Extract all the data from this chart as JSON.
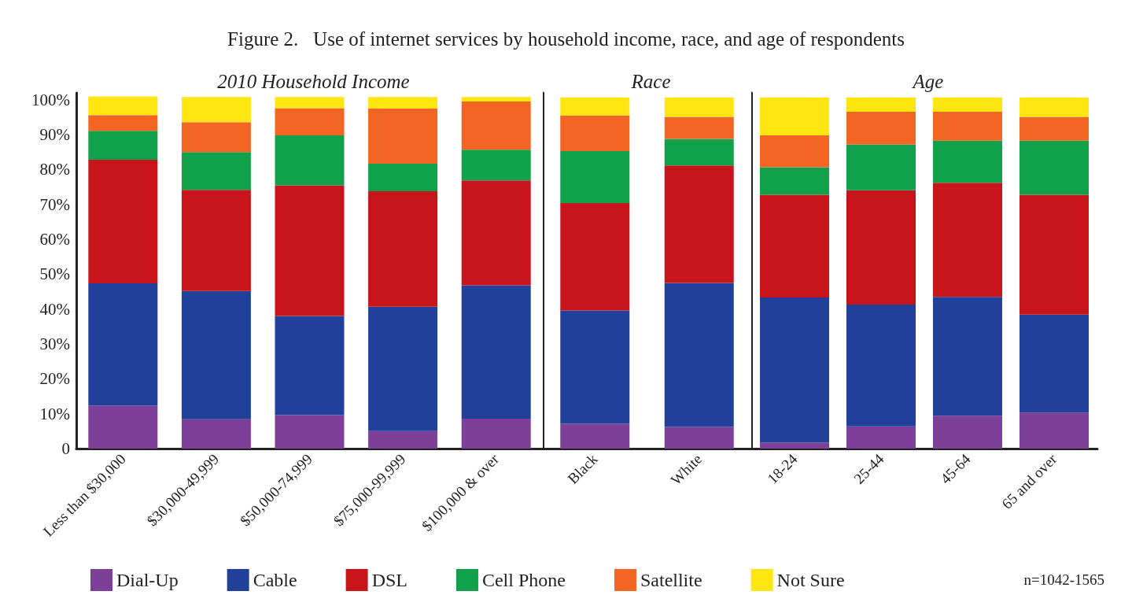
{
  "chart_data": [
    {
      "type": "bar",
      "title": "Figure 2.   Use of internet services by household income, race, and age of respondents",
      "subtitle": "2010 Household Income",
      "stacked": true,
      "legend": "bottom",
      "annotations": [
        "n=1042-1565"
      ],
      "categories": [
        "Less than $30,000",
        "$30,000-49,999",
        "$50,000-74,999",
        "$75,000-99,999",
        "$100,000 & over"
      ],
      "ylim": [
        0,
        102
      ],
      "yticks": [
        {
          "value": 0,
          "label": "0"
        },
        {
          "value": 10,
          "label": "10%"
        },
        {
          "value": 20,
          "label": "20%"
        },
        {
          "value": 30,
          "label": "30%"
        },
        {
          "value": 40,
          "label": "40%"
        },
        {
          "value": 50,
          "label": "50%"
        },
        {
          "value": 60,
          "label": "60%"
        },
        {
          "value": 70,
          "label": "70%"
        },
        {
          "value": 80,
          "label": "80%"
        },
        {
          "value": 90,
          "label": "90%"
        },
        {
          "value": 100,
          "label": "100%"
        }
      ],
      "series": [
        {
          "name": "Dial-Up",
          "color": "#7e3f98",
          "values": [
            12.3,
            8.4,
            9.6,
            5.0,
            8.6
          ]
        },
        {
          "name": "Cable",
          "color": "#21409a",
          "values": [
            35.1,
            36.8,
            28.4,
            35.7,
            38.2
          ]
        },
        {
          "name": "DSL",
          "color": "#c8151b",
          "values": [
            35.4,
            29.0,
            37.5,
            33.1,
            30.1
          ]
        },
        {
          "name": "Cell Phone",
          "color": "#10a14a",
          "values": [
            8.3,
            10.8,
            14.3,
            7.9,
            8.8
          ]
        },
        {
          "name": "Satellite",
          "color": "#f26522",
          "values": [
            4.5,
            8.6,
            7.8,
            15.8,
            13.8
          ]
        },
        {
          "name": "Not Sure",
          "color": "#ffe512",
          "values": [
            5.4,
            7.2,
            3.2,
            3.3,
            1.3
          ]
        }
      ]
    },
    {
      "type": "bar",
      "subtitle": "Race",
      "stacked": true,
      "tick_labels": "x",
      "categories": [
        "Black",
        "White"
      ],
      "ylim": [
        0,
        102
      ],
      "series": [
        {
          "color": "#7e3f98",
          "values": [
            7.1,
            6.2
          ]
        },
        {
          "color": "#21409a",
          "values": [
            32.5,
            41.3
          ]
        },
        {
          "color": "#c8151b",
          "values": [
            30.8,
            33.7
          ]
        },
        {
          "color": "#10a14a",
          "values": [
            14.9,
            7.6
          ]
        },
        {
          "color": "#f26522",
          "values": [
            10.2,
            6.3
          ]
        },
        {
          "color": "#ffe512",
          "values": [
            5.2,
            5.6
          ]
        }
      ]
    },
    {
      "type": "bar",
      "subtitle": "Age",
      "stacked": true,
      "tick_labels": "x",
      "categories": [
        "18-24",
        "25-44",
        "45-64",
        "65 and over"
      ],
      "ylim": [
        0,
        102
      ],
      "series": [
        {
          "color": "#7e3f98",
          "values": [
            1.7,
            6.4,
            9.4,
            10.3
          ]
        },
        {
          "color": "#21409a",
          "values": [
            41.6,
            34.9,
            34.1,
            28.1
          ]
        },
        {
          "color": "#c8151b",
          "values": [
            29.5,
            32.8,
            32.7,
            34.4
          ]
        },
        {
          "color": "#10a14a",
          "values": [
            7.9,
            13.1,
            12.1,
            15.5
          ]
        },
        {
          "color": "#f26522",
          "values": [
            9.1,
            9.4,
            8.3,
            6.8
          ]
        },
        {
          "color": "#ffe512",
          "values": [
            10.9,
            4.1,
            4.1,
            5.6
          ]
        }
      ]
    }
  ]
}
